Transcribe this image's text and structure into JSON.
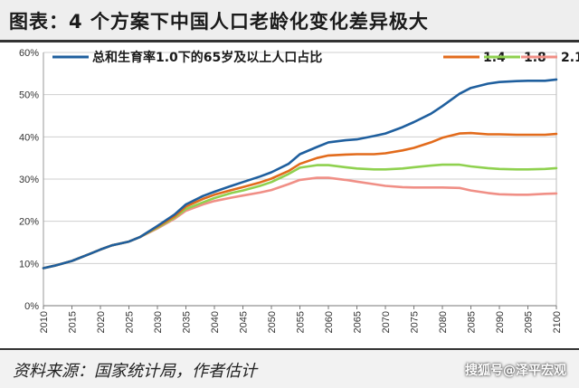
{
  "header": {
    "title": "图表：4 个方案下中国人口老龄化变化差异极大"
  },
  "footer": {
    "source": "资料来源：国家统计局，作者估计",
    "watermark": "搜狐号@泽平宏观"
  },
  "chart_data": {
    "type": "line",
    "xlim": [
      2010,
      2100
    ],
    "ylim": [
      0,
      60
    ],
    "x_ticks": [
      "2010",
      "2015",
      "2020",
      "2025",
      "2030",
      "2035",
      "2040",
      "2045",
      "2050",
      "2055",
      "2060",
      "2065",
      "2070",
      "2075",
      "2080",
      "2085",
      "2090",
      "2095",
      "2100"
    ],
    "y_ticks": [
      "0%",
      "10%",
      "20%",
      "30%",
      "40%",
      "50%",
      "60%"
    ],
    "grid": "horizontal",
    "legend_position": "top",
    "x": [
      2010,
      2012,
      2015,
      2018,
      2020,
      2022,
      2025,
      2027,
      2030,
      2033,
      2035,
      2038,
      2040,
      2043,
      2045,
      2048,
      2050,
      2053,
      2055,
      2058,
      2060,
      2063,
      2065,
      2068,
      2070,
      2073,
      2075,
      2078,
      2080,
      2083,
      2085,
      2088,
      2090,
      2093,
      2095,
      2098,
      2100
    ],
    "series": [
      {
        "name": "总和生育率1.0下的65岁及以上人口占比",
        "color": "#1f5f9e",
        "values": [
          8.9,
          9.5,
          10.6,
          12.2,
          13.3,
          14.3,
          15.2,
          16.3,
          18.9,
          21.6,
          24.0,
          26.0,
          27.0,
          28.4,
          29.3,
          30.6,
          31.6,
          33.6,
          35.9,
          37.6,
          38.7,
          39.2,
          39.4,
          40.2,
          40.8,
          42.3,
          43.5,
          45.5,
          47.3,
          50.2,
          51.6,
          52.6,
          53.0,
          53.2,
          53.3,
          53.3,
          53.6
        ]
      },
      {
        "name": "1.4",
        "color": "#e26b1c",
        "values": [
          8.9,
          9.5,
          10.6,
          12.2,
          13.3,
          14.3,
          15.2,
          16.3,
          18.7,
          21.2,
          23.5,
          25.3,
          26.3,
          27.4,
          28.1,
          29.2,
          30.1,
          31.9,
          33.6,
          35.0,
          35.6,
          35.8,
          35.9,
          35.9,
          36.1,
          36.8,
          37.4,
          38.7,
          39.8,
          40.8,
          40.9,
          40.6,
          40.6,
          40.5,
          40.5,
          40.5,
          40.7
        ]
      },
      {
        "name": "1.8",
        "color": "#8fd14f",
        "values": [
          8.9,
          9.5,
          10.6,
          12.2,
          13.3,
          14.3,
          15.2,
          16.3,
          18.5,
          20.9,
          22.9,
          24.5,
          25.5,
          26.7,
          27.3,
          28.4,
          29.3,
          31.2,
          32.7,
          33.3,
          33.3,
          32.8,
          32.5,
          32.3,
          32.3,
          32.5,
          32.8,
          33.2,
          33.4,
          33.4,
          33.0,
          32.6,
          32.4,
          32.3,
          32.3,
          32.4,
          32.6
        ]
      },
      {
        "name": "2.1",
        "color": "#f08f86",
        "values": [
          8.9,
          9.5,
          10.6,
          12.2,
          13.3,
          14.3,
          15.2,
          16.3,
          18.3,
          20.6,
          22.5,
          24.0,
          24.8,
          25.6,
          26.1,
          26.8,
          27.4,
          28.8,
          29.8,
          30.3,
          30.3,
          29.8,
          29.4,
          28.8,
          28.4,
          28.1,
          28.0,
          28.0,
          28.0,
          27.9,
          27.3,
          26.7,
          26.4,
          26.3,
          26.3,
          26.5,
          26.6
        ]
      }
    ]
  }
}
